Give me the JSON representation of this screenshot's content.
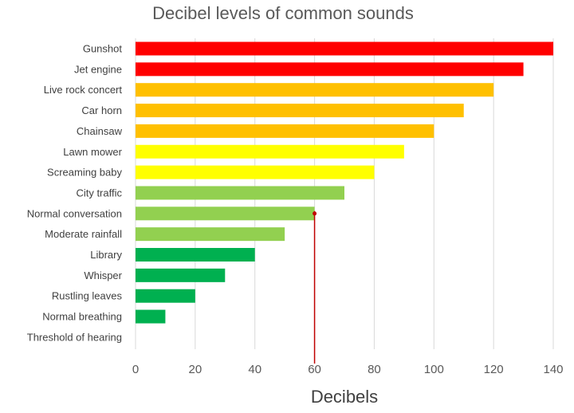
{
  "chart_data": {
    "type": "bar",
    "orientation": "horizontal",
    "title": "Decibel levels of common sounds",
    "xlabel": "Decibels",
    "ylabel": "",
    "xlim": [
      0,
      140
    ],
    "xticks": [
      0,
      20,
      40,
      60,
      80,
      100,
      120,
      140
    ],
    "grid": "vertical",
    "legend": "none",
    "categories": [
      "Gunshot",
      "Jet engine",
      "Live rock concert",
      "Car horn",
      "Chainsaw",
      "Lawn mower",
      "Screaming baby",
      "City traffic",
      "Normal conversation",
      "Moderate rainfall",
      "Library",
      "Whisper",
      "Rustling leaves",
      "Normal breathing",
      "Threshold of hearing"
    ],
    "values": [
      140,
      130,
      120,
      110,
      100,
      90,
      80,
      70,
      60,
      50,
      40,
      30,
      20,
      10,
      0
    ],
    "bar_colors": [
      "#ff0000",
      "#ff0000",
      "#ffc000",
      "#ffc000",
      "#ffc000",
      "#ffff00",
      "#ffff00",
      "#92d050",
      "#92d050",
      "#92d050",
      "#00b050",
      "#00b050",
      "#00b050",
      "#00b050",
      "#00b050"
    ],
    "reference_line": {
      "value": 60,
      "color": "#c00000"
    }
  }
}
